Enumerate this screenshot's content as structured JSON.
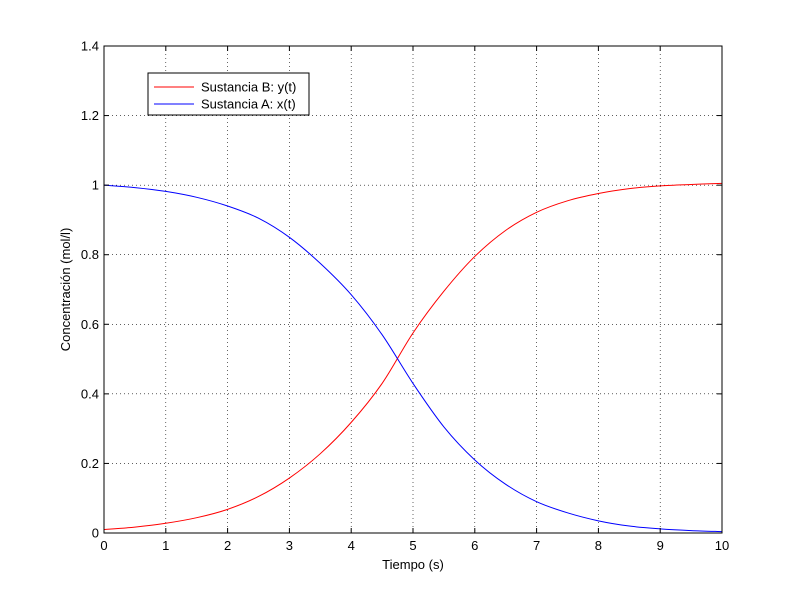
{
  "chart_data": {
    "type": "line",
    "title": "",
    "xlabel": "Tiempo (s)",
    "ylabel": "Concentración (mol/l)",
    "xlim": [
      0,
      10
    ],
    "ylim": [
      0,
      1.4
    ],
    "xticks": [
      0,
      1,
      2,
      3,
      4,
      5,
      6,
      7,
      8,
      9,
      10
    ],
    "yticks": [
      0,
      0.2,
      0.4,
      0.6,
      0.8,
      1,
      1.2,
      1.4
    ],
    "xtick_labels": [
      "0",
      "1",
      "2",
      "3",
      "4",
      "5",
      "6",
      "7",
      "8",
      "9",
      "10"
    ],
    "ytick_labels": [
      "0",
      "0.2",
      "0.4",
      "0.6",
      "0.8",
      "1",
      "1.2",
      "1.4"
    ],
    "grid": true,
    "legend_position": "top-left",
    "x": [
      0,
      0.5,
      1,
      1.5,
      2,
      2.5,
      3,
      3.5,
      4,
      4.5,
      5,
      5.5,
      6,
      6.5,
      7,
      7.5,
      8,
      8.5,
      9,
      9.5,
      10
    ],
    "series": [
      {
        "name": "Sustancia B: y(t)",
        "color": "#ff0000",
        "values": [
          0.01,
          0.017,
          0.028,
          0.044,
          0.068,
          0.105,
          0.158,
          0.228,
          0.318,
          0.43,
          0.575,
          0.695,
          0.795,
          0.87,
          0.922,
          0.955,
          0.976,
          0.99,
          0.998,
          1.002,
          1.005
        ]
      },
      {
        "name": "Sustancia A: x(t)",
        "color": "#0000ff",
        "values": [
          1.0,
          0.993,
          0.982,
          0.965,
          0.94,
          0.905,
          0.85,
          0.775,
          0.685,
          0.57,
          0.43,
          0.305,
          0.21,
          0.14,
          0.09,
          0.058,
          0.035,
          0.02,
          0.012,
          0.007,
          0.004
        ]
      }
    ]
  }
}
